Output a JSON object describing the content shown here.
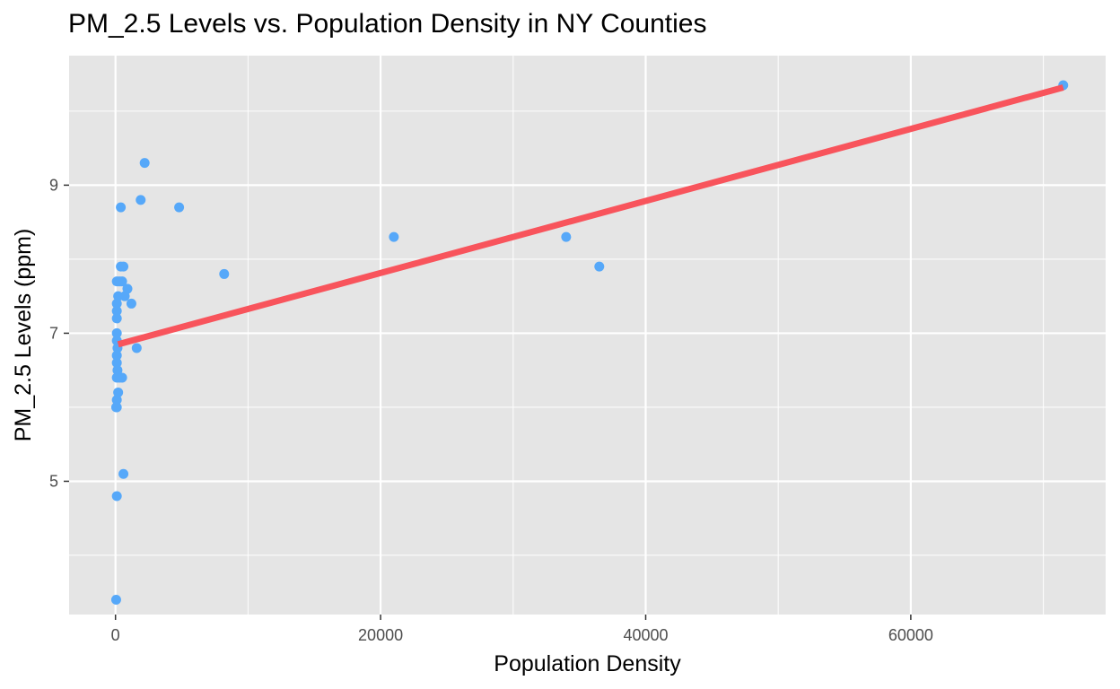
{
  "chart_data": {
    "type": "scatter",
    "title": "PM_2.5 Levels vs. Population Density in NY Counties",
    "xlabel": "Population Density",
    "ylabel": "PM_2.5 Levels (ppm)",
    "xlim": [
      -3500,
      74700
    ],
    "ylim": [
      3.2,
      10.75
    ],
    "x_ticks": [
      0,
      20000,
      40000,
      60000
    ],
    "x_tick_labels": [
      "0",
      "20000",
      "40000",
      "60000"
    ],
    "y_ticks": [
      5,
      7,
      9
    ],
    "y_tick_labels": [
      "5",
      "7",
      "9"
    ],
    "grid": true,
    "legend": "none",
    "colors": {
      "panel": "#e5e5e5",
      "grid_major": "#ffffff",
      "points": "#56a8f9",
      "trend_line": "#f8545c"
    },
    "points": [
      {
        "x": 71500,
        "y": 10.35
      },
      {
        "x": 2200,
        "y": 9.3
      },
      {
        "x": 1900,
        "y": 8.8
      },
      {
        "x": 4800,
        "y": 8.7
      },
      {
        "x": 400,
        "y": 8.7
      },
      {
        "x": 21000,
        "y": 8.3
      },
      {
        "x": 34000,
        "y": 8.3
      },
      {
        "x": 36500,
        "y": 7.9
      },
      {
        "x": 8200,
        "y": 7.8
      },
      {
        "x": 400,
        "y": 7.9
      },
      {
        "x": 600,
        "y": 7.9
      },
      {
        "x": 100,
        "y": 7.7
      },
      {
        "x": 300,
        "y": 7.7
      },
      {
        "x": 500,
        "y": 7.7
      },
      {
        "x": 900,
        "y": 7.6
      },
      {
        "x": 700,
        "y": 7.5
      },
      {
        "x": 200,
        "y": 7.5
      },
      {
        "x": 100,
        "y": 7.4
      },
      {
        "x": 1200,
        "y": 7.4
      },
      {
        "x": 100,
        "y": 7.3
      },
      {
        "x": 100,
        "y": 7.2
      },
      {
        "x": 100,
        "y": 7.0
      },
      {
        "x": 100,
        "y": 6.9
      },
      {
        "x": 150,
        "y": 6.8
      },
      {
        "x": 1600,
        "y": 6.8
      },
      {
        "x": 100,
        "y": 6.7
      },
      {
        "x": 100,
        "y": 6.6
      },
      {
        "x": 150,
        "y": 6.5
      },
      {
        "x": 100,
        "y": 6.4
      },
      {
        "x": 300,
        "y": 6.4
      },
      {
        "x": 500,
        "y": 6.4
      },
      {
        "x": 200,
        "y": 6.2
      },
      {
        "x": 100,
        "y": 6.1
      },
      {
        "x": 50,
        "y": 6.0
      },
      {
        "x": 100,
        "y": 6.0
      },
      {
        "x": 600,
        "y": 5.1
      },
      {
        "x": 100,
        "y": 4.8
      },
      {
        "x": 50,
        "y": 3.4
      }
    ],
    "trend_line": {
      "x": [
        200,
        71500
      ],
      "y": [
        6.85,
        10.32
      ]
    }
  }
}
